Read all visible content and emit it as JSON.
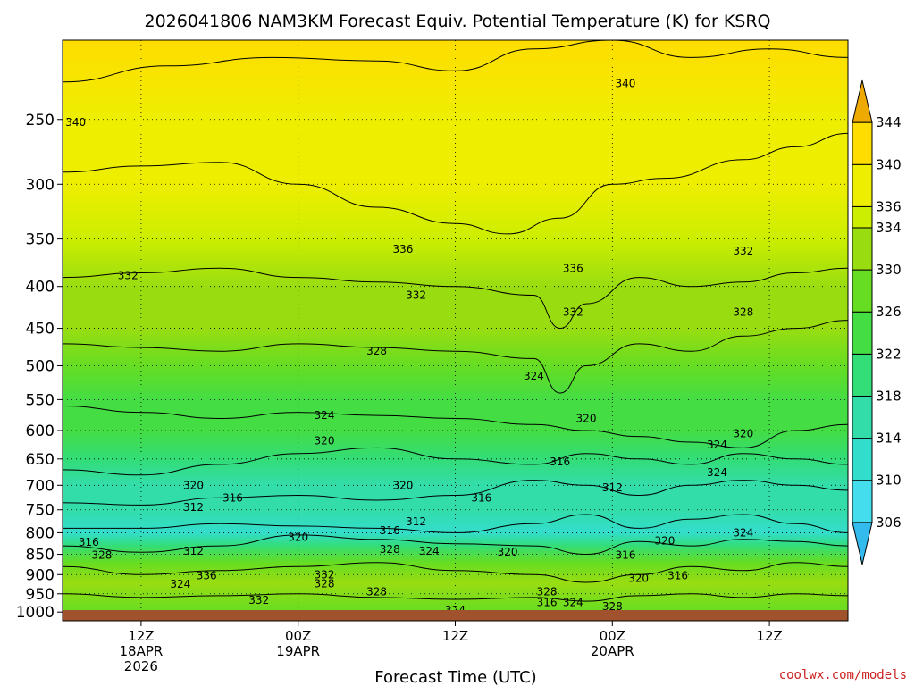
{
  "chart_data": {
    "type": "heatmap",
    "title": "2026041806 NAM3KM Forecast Equiv. Potential Temperature (K) for KSRQ",
    "xlabel": "Forecast Time (UTC)",
    "ylabel": "",
    "credit": "coolwx.com/models",
    "pressure_ticks": [
      250,
      300,
      350,
      400,
      450,
      500,
      550,
      600,
      650,
      700,
      750,
      800,
      850,
      900,
      950,
      1000
    ],
    "ylim": [
      1025,
      200
    ],
    "y_scale": "log",
    "xlim": [
      0,
      60
    ],
    "time_ticks": [
      {
        "hour": 6,
        "lines": [
          "12Z",
          "18APR",
          "2026"
        ]
      },
      {
        "hour": 18,
        "lines": [
          "00Z",
          "19APR"
        ]
      },
      {
        "hour": 30,
        "lines": [
          "12Z"
        ]
      },
      {
        "hour": 42,
        "lines": [
          "00Z",
          "20APR"
        ]
      },
      {
        "hour": 54,
        "lines": [
          "12Z"
        ]
      }
    ],
    "grid": true,
    "colorbar": {
      "levels": [
        306,
        310,
        314,
        318,
        322,
        326,
        330,
        334,
        336,
        340,
        344
      ],
      "colors": [
        "#33bbee",
        "#44ddee",
        "#33ddcc",
        "#33ddaa",
        "#33dd77",
        "#44dd44",
        "#66dd22",
        "#99dd11",
        "#ccee00",
        "#eeee00",
        "#ffdd00",
        "#eeaa00"
      ],
      "range": [
        302,
        348
      ],
      "placement": "right"
    },
    "ground_color": "#a0522d",
    "series": [
      {
        "level": 340,
        "points": [
          [
            0,
            225
          ],
          [
            8,
            215
          ],
          [
            16,
            210
          ],
          [
            24,
            212
          ],
          [
            30,
            218
          ],
          [
            36,
            205
          ],
          [
            42,
            200
          ],
          [
            48,
            210
          ],
          [
            54,
            205
          ],
          [
            60,
            210
          ]
        ]
      },
      {
        "level": 336,
        "points": [
          [
            0,
            290
          ],
          [
            6,
            285
          ],
          [
            12,
            282
          ],
          [
            18,
            300
          ],
          [
            24,
            320
          ],
          [
            30,
            335
          ],
          [
            34,
            345
          ],
          [
            38,
            330
          ],
          [
            42,
            300
          ],
          [
            46,
            295
          ],
          [
            52,
            280
          ],
          [
            56,
            270
          ],
          [
            60,
            260
          ]
        ]
      },
      {
        "level": 332,
        "points": [
          [
            0,
            390
          ],
          [
            6,
            385
          ],
          [
            12,
            380
          ],
          [
            18,
            390
          ],
          [
            24,
            395
          ],
          [
            30,
            400
          ],
          [
            36,
            410
          ],
          [
            38,
            450
          ],
          [
            40,
            420
          ],
          [
            44,
            390
          ],
          [
            48,
            400
          ],
          [
            52,
            395
          ],
          [
            56,
            385
          ],
          [
            60,
            380
          ]
        ]
      },
      {
        "level": 328,
        "points": [
          [
            0,
            470
          ],
          [
            6,
            475
          ],
          [
            12,
            480
          ],
          [
            18,
            470
          ],
          [
            24,
            475
          ],
          [
            30,
            480
          ],
          [
            36,
            490
          ],
          [
            38,
            540
          ],
          [
            40,
            500
          ],
          [
            44,
            470
          ],
          [
            48,
            480
          ],
          [
            52,
            460
          ],
          [
            56,
            450
          ],
          [
            60,
            440
          ]
        ]
      },
      {
        "level": 324,
        "points": [
          [
            0,
            560
          ],
          [
            6,
            570
          ],
          [
            12,
            580
          ],
          [
            18,
            570
          ],
          [
            24,
            575
          ],
          [
            30,
            580
          ],
          [
            36,
            590
          ],
          [
            40,
            600
          ],
          [
            44,
            610
          ],
          [
            48,
            620
          ],
          [
            52,
            630
          ],
          [
            56,
            600
          ],
          [
            60,
            590
          ]
        ]
      },
      {
        "level": 320,
        "points": [
          [
            0,
            670
          ],
          [
            6,
            680
          ],
          [
            12,
            660
          ],
          [
            18,
            640
          ],
          [
            24,
            630
          ],
          [
            30,
            650
          ],
          [
            36,
            660
          ],
          [
            40,
            640
          ],
          [
            44,
            650
          ],
          [
            48,
            660
          ],
          [
            52,
            640
          ],
          [
            56,
            650
          ],
          [
            60,
            660
          ]
        ]
      },
      {
        "level": 316,
        "points": [
          [
            0,
            735
          ],
          [
            6,
            740
          ],
          [
            12,
            725
          ],
          [
            18,
            720
          ],
          [
            24,
            730
          ],
          [
            30,
            720
          ],
          [
            36,
            690
          ],
          [
            40,
            700
          ],
          [
            44,
            720
          ],
          [
            48,
            700
          ],
          [
            52,
            690
          ],
          [
            56,
            700
          ],
          [
            60,
            710
          ]
        ]
      },
      {
        "level": 312,
        "points": [
          [
            0,
            790
          ],
          [
            6,
            790
          ],
          [
            12,
            780
          ],
          [
            18,
            785
          ],
          [
            24,
            790
          ],
          [
            30,
            800
          ],
          [
            36,
            780
          ],
          [
            40,
            760
          ],
          [
            44,
            790
          ],
          [
            48,
            770
          ],
          [
            52,
            760
          ],
          [
            56,
            780
          ],
          [
            60,
            800
          ]
        ]
      },
      {
        "level": 316,
        "points": [
          [
            0,
            830
          ],
          [
            6,
            845
          ],
          [
            12,
            830
          ],
          [
            18,
            805
          ],
          [
            24,
            815
          ],
          [
            30,
            825
          ],
          [
            36,
            830
          ],
          [
            40,
            850
          ],
          [
            44,
            820
          ],
          [
            48,
            830
          ],
          [
            52,
            815
          ],
          [
            56,
            820
          ],
          [
            60,
            830
          ]
        ]
      },
      {
        "level": 324,
        "points": [
          [
            0,
            880
          ],
          [
            6,
            900
          ],
          [
            12,
            890
          ],
          [
            18,
            880
          ],
          [
            24,
            870
          ],
          [
            30,
            890
          ],
          [
            36,
            900
          ],
          [
            40,
            920
          ],
          [
            44,
            900
          ],
          [
            48,
            880
          ],
          [
            52,
            890
          ],
          [
            56,
            870
          ],
          [
            60,
            880
          ]
        ]
      },
      {
        "level": 328,
        "points": [
          [
            0,
            950
          ],
          [
            6,
            960
          ],
          [
            12,
            955
          ],
          [
            18,
            950
          ],
          [
            24,
            960
          ],
          [
            30,
            965
          ],
          [
            36,
            960
          ],
          [
            40,
            970
          ],
          [
            44,
            955
          ],
          [
            48,
            950
          ],
          [
            52,
            960
          ],
          [
            56,
            950
          ],
          [
            60,
            955
          ]
        ]
      }
    ],
    "contour_labels": [
      {
        "t": 1,
        "p": 252,
        "text": "340"
      },
      {
        "t": 43,
        "p": 226,
        "text": "340"
      },
      {
        "t": 26,
        "p": 360,
        "text": "336"
      },
      {
        "t": 39,
        "p": 380,
        "text": "336"
      },
      {
        "t": 5,
        "p": 388,
        "text": "332"
      },
      {
        "t": 27,
        "p": 410,
        "text": "332"
      },
      {
        "t": 39,
        "p": 430,
        "text": "332"
      },
      {
        "t": 52,
        "p": 362,
        "text": "332"
      },
      {
        "t": 24,
        "p": 480,
        "text": "328"
      },
      {
        "t": 52,
        "p": 430,
        "text": "328"
      },
      {
        "t": 20,
        "p": 575,
        "text": "324"
      },
      {
        "t": 36,
        "p": 515,
        "text": "324"
      },
      {
        "t": 20,
        "p": 618,
        "text": "320"
      },
      {
        "t": 40,
        "p": 580,
        "text": "320"
      },
      {
        "t": 52,
        "p": 605,
        "text": "320"
      },
      {
        "t": 50,
        "p": 625,
        "text": "324"
      },
      {
        "t": 50,
        "p": 675,
        "text": "324"
      },
      {
        "t": 38,
        "p": 655,
        "text": "316"
      },
      {
        "t": 26,
        "p": 700,
        "text": "320"
      },
      {
        "t": 10,
        "p": 700,
        "text": "320"
      },
      {
        "t": 13,
        "p": 725,
        "text": "316"
      },
      {
        "t": 10,
        "p": 745,
        "text": "312"
      },
      {
        "t": 42,
        "p": 705,
        "text": "312"
      },
      {
        "t": 32,
        "p": 725,
        "text": "316"
      },
      {
        "t": 27,
        "p": 775,
        "text": "312"
      },
      {
        "t": 25,
        "p": 795,
        "text": "316"
      },
      {
        "t": 18,
        "p": 810,
        "text": "320"
      },
      {
        "t": 2,
        "p": 822,
        "text": "316"
      },
      {
        "t": 3,
        "p": 852,
        "text": "328"
      },
      {
        "t": 10,
        "p": 843,
        "text": "312"
      },
      {
        "t": 25,
        "p": 838,
        "text": "328"
      },
      {
        "t": 28,
        "p": 843,
        "text": "324"
      },
      {
        "t": 34,
        "p": 845,
        "text": "320"
      },
      {
        "t": 46,
        "p": 818,
        "text": "320"
      },
      {
        "t": 52,
        "p": 800,
        "text": "324"
      },
      {
        "t": 43,
        "p": 852,
        "text": "316"
      },
      {
        "t": 9,
        "p": 925,
        "text": "324"
      },
      {
        "t": 11,
        "p": 903,
        "text": "336"
      },
      {
        "t": 20,
        "p": 900,
        "text": "332"
      },
      {
        "t": 20,
        "p": 923,
        "text": "328"
      },
      {
        "t": 15,
        "p": 968,
        "text": "332"
      },
      {
        "t": 24,
        "p": 945,
        "text": "328"
      },
      {
        "t": 37,
        "p": 945,
        "text": "328"
      },
      {
        "t": 44,
        "p": 910,
        "text": "320"
      },
      {
        "t": 47,
        "p": 903,
        "text": "316"
      },
      {
        "t": 37,
        "p": 973,
        "text": "316"
      },
      {
        "t": 39,
        "p": 973,
        "text": "324"
      },
      {
        "t": 42,
        "p": 985,
        "text": "328"
      },
      {
        "t": 30,
        "p": 995,
        "text": "324"
      }
    ]
  }
}
